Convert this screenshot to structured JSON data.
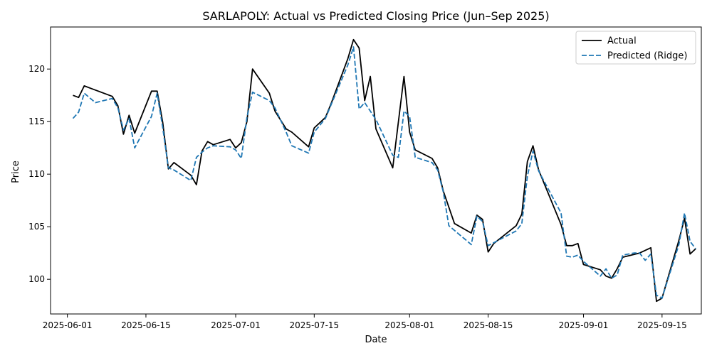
{
  "chart_data": {
    "type": "line",
    "title": "SARLAPOLY: Actual vs Predicted Closing Price (Jun–Sep 2025)",
    "xlabel": "Date",
    "ylabel": "Price",
    "xlim": [
      "2025-05-29",
      "2025-09-22"
    ],
    "ylim": [
      96.7,
      124.0
    ],
    "x_ticks": [
      {
        "date": "2025-06-01",
        "label": "2025-06-01"
      },
      {
        "date": "2025-06-15",
        "label": "2025-06-15"
      },
      {
        "date": "2025-07-01",
        "label": "2025-07-01"
      },
      {
        "date": "2025-07-15",
        "label": "2025-07-15"
      },
      {
        "date": "2025-08-01",
        "label": "2025-08-01"
      },
      {
        "date": "2025-08-15",
        "label": "2025-08-15"
      },
      {
        "date": "2025-09-01",
        "label": "2025-09-01"
      },
      {
        "date": "2025-09-15",
        "label": "2025-09-15"
      }
    ],
    "y_ticks": [
      {
        "value": 100,
        "label": "100"
      },
      {
        "value": 105,
        "label": "105"
      },
      {
        "value": 110,
        "label": "110"
      },
      {
        "value": 115,
        "label": "115"
      },
      {
        "value": 120,
        "label": "120"
      }
    ],
    "grid": false,
    "legend_position": "top-right",
    "series": [
      {
        "name": "Actual",
        "color": "#000000",
        "dash": "solid",
        "points": [
          [
            "2025-06-02",
            117.5
          ],
          [
            "2025-06-03",
            117.3
          ],
          [
            "2025-06-04",
            118.4
          ],
          [
            "2025-06-06",
            118.0
          ],
          [
            "2025-06-09",
            117.4
          ],
          [
            "2025-06-10",
            116.5
          ],
          [
            "2025-06-11",
            113.8
          ],
          [
            "2025-06-12",
            115.6
          ],
          [
            "2025-06-13",
            113.9
          ],
          [
            "2025-06-16",
            117.9
          ],
          [
            "2025-06-17",
            117.9
          ],
          [
            "2025-06-18",
            114.9
          ],
          [
            "2025-06-19",
            110.5
          ],
          [
            "2025-06-20",
            111.1
          ],
          [
            "2025-06-23",
            109.9
          ],
          [
            "2025-06-24",
            109.0
          ],
          [
            "2025-06-25",
            112.2
          ],
          [
            "2025-06-26",
            113.1
          ],
          [
            "2025-06-27",
            112.8
          ],
          [
            "2025-06-30",
            113.3
          ],
          [
            "2025-07-01",
            112.5
          ],
          [
            "2025-07-02",
            113.0
          ],
          [
            "2025-07-03",
            115.0
          ],
          [
            "2025-07-04",
            120.0
          ],
          [
            "2025-07-07",
            117.7
          ],
          [
            "2025-07-08",
            116.0
          ],
          [
            "2025-07-10",
            114.3
          ],
          [
            "2025-07-11",
            114.0
          ],
          [
            "2025-07-14",
            112.6
          ],
          [
            "2025-07-15",
            114.4
          ],
          [
            "2025-07-17",
            115.4
          ],
          [
            "2025-07-18",
            116.7
          ],
          [
            "2025-07-21",
            121.0
          ],
          [
            "2025-07-22",
            122.8
          ],
          [
            "2025-07-23",
            122.0
          ],
          [
            "2025-07-24",
            117.0
          ],
          [
            "2025-07-25",
            119.3
          ],
          [
            "2025-07-26",
            114.3
          ],
          [
            "2025-07-29",
            110.6
          ],
          [
            "2025-07-31",
            119.3
          ],
          [
            "2025-08-01",
            114.0
          ],
          [
            "2025-08-02",
            112.3
          ],
          [
            "2025-08-05",
            111.5
          ],
          [
            "2025-08-06",
            110.6
          ],
          [
            "2025-08-07",
            108.4
          ],
          [
            "2025-08-09",
            105.3
          ],
          [
            "2025-08-12",
            104.4
          ],
          [
            "2025-08-13",
            106.1
          ],
          [
            "2025-08-14",
            105.7
          ],
          [
            "2025-08-15",
            102.6
          ],
          [
            "2025-08-16",
            103.4
          ],
          [
            "2025-08-20",
            105.1
          ],
          [
            "2025-08-21",
            106.2
          ],
          [
            "2025-08-22",
            111.2
          ],
          [
            "2025-08-23",
            112.7
          ],
          [
            "2025-08-24",
            110.4
          ],
          [
            "2025-08-28",
            105.2
          ],
          [
            "2025-08-29",
            103.2
          ],
          [
            "2025-08-30",
            103.2
          ],
          [
            "2025-08-31",
            103.4
          ],
          [
            "2025-09-01",
            101.4
          ],
          [
            "2025-09-04",
            100.9
          ],
          [
            "2025-09-05",
            100.3
          ],
          [
            "2025-09-06",
            100.1
          ],
          [
            "2025-09-07",
            101.0
          ],
          [
            "2025-09-08",
            102.1
          ],
          [
            "2025-09-11",
            102.5
          ],
          [
            "2025-09-13",
            103.0
          ],
          [
            "2025-09-14",
            97.9
          ],
          [
            "2025-09-15",
            98.2
          ],
          [
            "2025-09-18",
            103.7
          ],
          [
            "2025-09-19",
            105.8
          ],
          [
            "2025-09-20",
            102.4
          ],
          [
            "2025-09-21",
            102.9
          ]
        ]
      },
      {
        "name": "Predicted (Ridge)",
        "color": "#1f77b4",
        "dash": "dashed",
        "points": [
          [
            "2025-06-02",
            115.3
          ],
          [
            "2025-06-03",
            115.9
          ],
          [
            "2025-06-04",
            117.7
          ],
          [
            "2025-06-06",
            116.8
          ],
          [
            "2025-06-09",
            117.2
          ],
          [
            "2025-06-10",
            116.3
          ],
          [
            "2025-06-11",
            114.2
          ],
          [
            "2025-06-12",
            115.3
          ],
          [
            "2025-06-13",
            112.5
          ],
          [
            "2025-06-16",
            115.5
          ],
          [
            "2025-06-17",
            117.7
          ],
          [
            "2025-06-18",
            114.4
          ],
          [
            "2025-06-19",
            110.6
          ],
          [
            "2025-06-20",
            110.4
          ],
          [
            "2025-06-23",
            109.4
          ],
          [
            "2025-06-24",
            111.6
          ],
          [
            "2025-06-25",
            112.1
          ],
          [
            "2025-06-26",
            112.5
          ],
          [
            "2025-06-27",
            112.7
          ],
          [
            "2025-06-30",
            112.6
          ],
          [
            "2025-07-01",
            112.3
          ],
          [
            "2025-07-02",
            111.5
          ],
          [
            "2025-07-03",
            115.4
          ],
          [
            "2025-07-04",
            117.8
          ],
          [
            "2025-07-07",
            117.0
          ],
          [
            "2025-07-08",
            116.3
          ],
          [
            "2025-07-10",
            114.0
          ],
          [
            "2025-07-11",
            112.7
          ],
          [
            "2025-07-14",
            112.0
          ],
          [
            "2025-07-15",
            114.0
          ],
          [
            "2025-07-17",
            115.3
          ],
          [
            "2025-07-18",
            116.6
          ],
          [
            "2025-07-21",
            120.4
          ],
          [
            "2025-07-22",
            122.1
          ],
          [
            "2025-07-23",
            116.2
          ],
          [
            "2025-07-24",
            116.8
          ],
          [
            "2025-07-25",
            116.0
          ],
          [
            "2025-07-26",
            115.2
          ],
          [
            "2025-07-29",
            111.8
          ],
          [
            "2025-07-30",
            111.6
          ],
          [
            "2025-07-31",
            116.0
          ],
          [
            "2025-08-01",
            115.5
          ],
          [
            "2025-08-02",
            111.6
          ],
          [
            "2025-08-05",
            111.1
          ],
          [
            "2025-08-06",
            110.4
          ],
          [
            "2025-08-07",
            108.3
          ],
          [
            "2025-08-08",
            105.1
          ],
          [
            "2025-08-12",
            103.3
          ],
          [
            "2025-08-13",
            106.0
          ],
          [
            "2025-08-14",
            105.5
          ],
          [
            "2025-08-15",
            103.2
          ],
          [
            "2025-08-20",
            104.6
          ],
          [
            "2025-08-21",
            105.3
          ],
          [
            "2025-08-22",
            109.8
          ],
          [
            "2025-08-23",
            112.2
          ],
          [
            "2025-08-24",
            110.3
          ],
          [
            "2025-08-28",
            106.3
          ],
          [
            "2025-08-29",
            102.2
          ],
          [
            "2025-08-30",
            102.1
          ],
          [
            "2025-08-31",
            102.3
          ],
          [
            "2025-09-01",
            101.7
          ],
          [
            "2025-09-04",
            100.3
          ],
          [
            "2025-09-05",
            101.0
          ],
          [
            "2025-09-06",
            100.1
          ],
          [
            "2025-09-07",
            100.4
          ],
          [
            "2025-09-08",
            102.3
          ],
          [
            "2025-09-10",
            102.5
          ],
          [
            "2025-09-11",
            102.5
          ],
          [
            "2025-09-12",
            101.8
          ],
          [
            "2025-09-13",
            102.4
          ],
          [
            "2025-09-14",
            98.5
          ],
          [
            "2025-09-15",
            98.2
          ],
          [
            "2025-09-18",
            103.3
          ],
          [
            "2025-09-19",
            106.3
          ],
          [
            "2025-09-20",
            103.6
          ],
          [
            "2025-09-21",
            102.9
          ]
        ]
      }
    ]
  }
}
